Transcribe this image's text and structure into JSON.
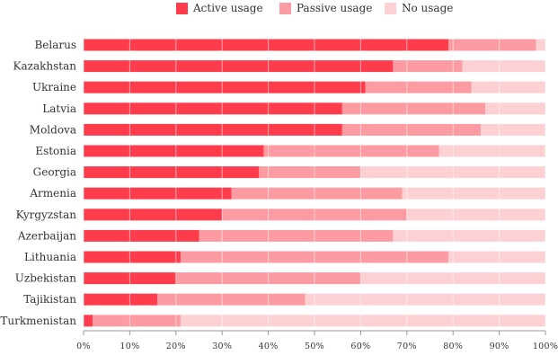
{
  "chart_data": {
    "type": "bar",
    "orientation": "horizontal",
    "stacked": true,
    "categories": [
      "Belarus",
      "Kazakhstan",
      "Ukraine",
      "Latvia",
      "Moldova",
      "Estonia",
      "Georgia",
      "Armenia",
      "Kyrgyzstan",
      "Azerbaijan",
      "Lithuania",
      "Uzbekistan",
      "Tajikistan",
      "Turkmenistan"
    ],
    "series": [
      {
        "name": "Active usage",
        "color": "#ff3c4c",
        "values": [
          79,
          67,
          61,
          56,
          56,
          39,
          38,
          32,
          30,
          25,
          21,
          20,
          16,
          2
        ]
      },
      {
        "name": "Passive usage",
        "color": "#fd9ba2",
        "values": [
          19,
          15,
          23,
          31,
          30,
          38,
          22,
          37,
          40,
          42,
          58,
          40,
          32,
          19
        ]
      },
      {
        "name": "No usage",
        "color": "#fdd0d4",
        "values": [
          2,
          18,
          16,
          13,
          14,
          23,
          40,
          31,
          30,
          33,
          21,
          40,
          52,
          79
        ]
      }
    ],
    "xlim": [
      0,
      100
    ],
    "xticks": [
      "0%",
      "10%",
      "20%",
      "30%",
      "40%",
      "50%",
      "60%",
      "70%",
      "80%",
      "90%",
      "100%"
    ],
    "xlabel": "",
    "ylabel": "",
    "title": "",
    "grid": true,
    "legend_position": "top-center"
  }
}
